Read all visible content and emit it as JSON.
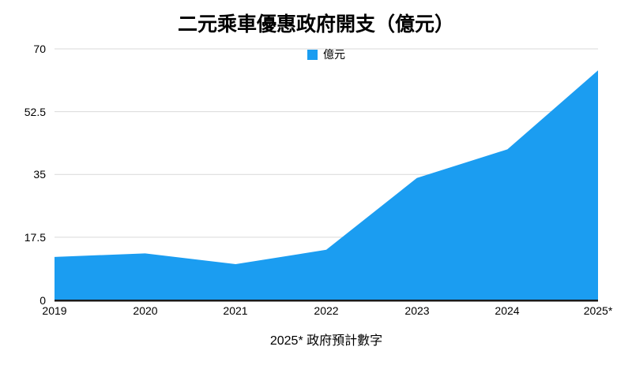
{
  "chart_data": {
    "type": "area",
    "title": "二元乘車優惠政府開支（億元）",
    "legend": {
      "label": "億元",
      "position": "top-center"
    },
    "x": [
      "2019",
      "2020",
      "2021",
      "2022",
      "2023",
      "2024",
      "2025*"
    ],
    "series": [
      {
        "name": "億元",
        "values": [
          12,
          13,
          10,
          14,
          34,
          42,
          64
        ]
      }
    ],
    "ylim": [
      0,
      70
    ],
    "yticks": [
      0,
      17.5,
      35,
      52.5,
      70
    ],
    "grid": "horizontal",
    "footnote": "2025* 政府預計數字",
    "colors": {
      "area": "#1B9DF1",
      "gridline": "#D9D9D9",
      "axis_line": "#1A1A1A",
      "text": "#000000"
    }
  }
}
